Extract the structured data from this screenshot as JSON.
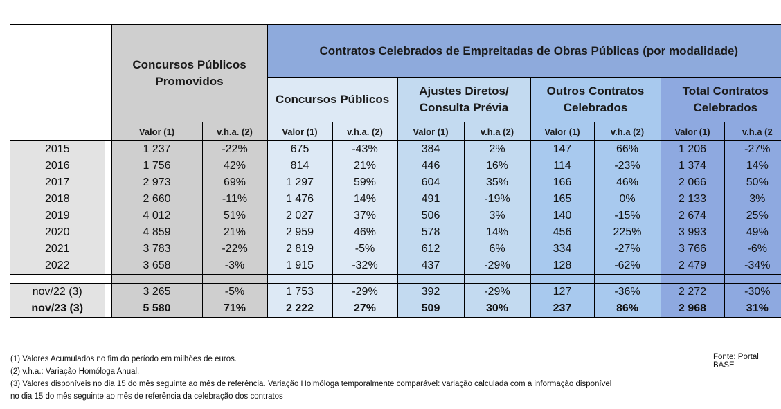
{
  "header": {
    "promovidos": "Concursos Públicos Promovidos",
    "celebrados": "Contratos Celebrados de Empreitadas de Obras Públicas (por modalidade)",
    "groups": [
      "Concursos Públicos",
      "Ajustes Diretos/ Consulta Prévia",
      "Outros Contratos Celebrados",
      "Total Contratos Celebrados"
    ],
    "cols": [
      "Valor (1)",
      "v.h.a. (2)",
      "Valor (1)",
      "v.h.a. (2)",
      "Valor (1)",
      "v.h.a (2)",
      "Valor (1)",
      "v.h.a (2)",
      "Valor (1)",
      "v.h.a (2"
    ]
  },
  "rows": [
    {
      "label": "2015",
      "v": [
        "1 237",
        "-22%",
        "675",
        "-43%",
        "384",
        "2%",
        "147",
        "66%",
        "1 206",
        "-27%"
      ]
    },
    {
      "label": "2016",
      "v": [
        "1 756",
        "42%",
        "814",
        "21%",
        "446",
        "16%",
        "114",
        "-23%",
        "1 374",
        "14%"
      ]
    },
    {
      "label": "2017",
      "v": [
        "2 973",
        "69%",
        "1 297",
        "59%",
        "604",
        "35%",
        "166",
        "46%",
        "2 066",
        "50%"
      ]
    },
    {
      "label": "2018",
      "v": [
        "2 660",
        "-11%",
        "1 476",
        "14%",
        "491",
        "-19%",
        "165",
        "0%",
        "2 133",
        "3%"
      ]
    },
    {
      "label": "2019",
      "v": [
        "4 012",
        "51%",
        "2 027",
        "37%",
        "506",
        "3%",
        "140",
        "-15%",
        "2 674",
        "25%"
      ]
    },
    {
      "label": "2020",
      "v": [
        "4 859",
        "21%",
        "2 959",
        "46%",
        "578",
        "14%",
        "456",
        "225%",
        "3 993",
        "49%"
      ]
    },
    {
      "label": "2021",
      "v": [
        "3 783",
        "-22%",
        "2 819",
        "-5%",
        "612",
        "6%",
        "334",
        "-27%",
        "3 766",
        "-6%"
      ]
    },
    {
      "label": "2022",
      "v": [
        "3 658",
        "-3%",
        "1 915",
        "-32%",
        "437",
        "-29%",
        "128",
        "-62%",
        "2 479",
        "-34%"
      ]
    }
  ],
  "bottom_rows": [
    {
      "label": "nov/22 (3)",
      "v": [
        "3 265",
        "-5%",
        "1 753",
        "-29%",
        "392",
        "-29%",
        "127",
        "-36%",
        "2 272",
        "-30%"
      ]
    },
    {
      "label": "nov/23 (3)",
      "v": [
        "5 580",
        "71%",
        "2 222",
        "27%",
        "509",
        "30%",
        "237",
        "86%",
        "2 968",
        "31%"
      ]
    }
  ],
  "notes": {
    "n1": "(1) Valores Acumulados no fim do período em milhões de euros.",
    "n2": "(2) v.h.a.: Variação Homóloga Anual.",
    "n3a": "(3) Valores disponíveis no dia 15 do mês seguinte ao mês de referência. Variação Holmóloga temporalmente comparável: variação calculada com a informação disponível",
    "n3b": "no dia 15 do mês  seguinte ao mês de referência da celebração dos contratos",
    "source": "Fonte: Portal BASE"
  }
}
